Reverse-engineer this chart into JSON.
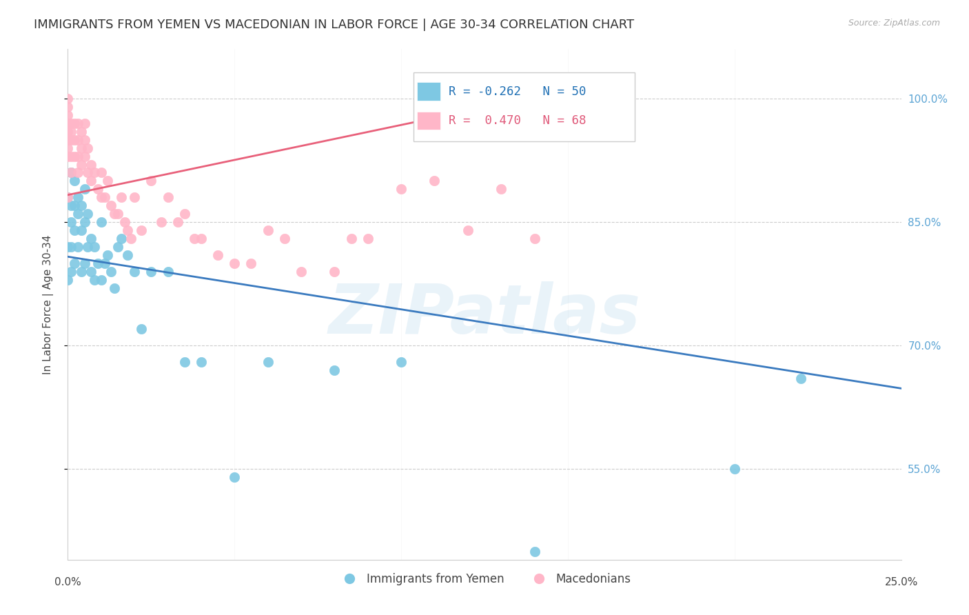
{
  "title": "IMMIGRANTS FROM YEMEN VS MACEDONIAN IN LABOR FORCE | AGE 30-34 CORRELATION CHART",
  "source": "Source: ZipAtlas.com",
  "ylabel": "In Labor Force | Age 30-34",
  "yticks": [
    0.55,
    0.7,
    0.85,
    1.0
  ],
  "ytick_labels": [
    "55.0%",
    "70.0%",
    "85.0%",
    "100.0%"
  ],
  "xlim": [
    0.0,
    0.25
  ],
  "ylim": [
    0.44,
    1.06
  ],
  "legend_blue_r": "-0.262",
  "legend_blue_n": "50",
  "legend_pink_r": "0.470",
  "legend_pink_n": "68",
  "legend_blue_label": "Immigrants from Yemen",
  "legend_pink_label": "Macedonians",
  "blue_color": "#7ec8e3",
  "pink_color": "#ffb6c8",
  "blue_line_color": "#3a7abf",
  "pink_line_color": "#e8607a",
  "background_color": "#ffffff",
  "watermark": "ZIPatlas",
  "title_fontsize": 13,
  "label_fontsize": 11,
  "tick_fontsize": 11,
  "blue_points_x": [
    0.0,
    0.0,
    0.0,
    0.001,
    0.001,
    0.001,
    0.001,
    0.001,
    0.002,
    0.002,
    0.002,
    0.002,
    0.003,
    0.003,
    0.003,
    0.004,
    0.004,
    0.004,
    0.005,
    0.005,
    0.005,
    0.006,
    0.006,
    0.007,
    0.007,
    0.008,
    0.008,
    0.009,
    0.01,
    0.01,
    0.011,
    0.012,
    0.013,
    0.014,
    0.015,
    0.016,
    0.018,
    0.02,
    0.022,
    0.025,
    0.03,
    0.035,
    0.04,
    0.05,
    0.06,
    0.08,
    0.1,
    0.14,
    0.2,
    0.22
  ],
  "blue_points_y": [
    0.88,
    0.82,
    0.78,
    0.91,
    0.87,
    0.85,
    0.82,
    0.79,
    0.9,
    0.87,
    0.84,
    0.8,
    0.88,
    0.86,
    0.82,
    0.87,
    0.84,
    0.79,
    0.89,
    0.85,
    0.8,
    0.86,
    0.82,
    0.83,
    0.79,
    0.82,
    0.78,
    0.8,
    0.85,
    0.78,
    0.8,
    0.81,
    0.79,
    0.77,
    0.82,
    0.83,
    0.81,
    0.79,
    0.72,
    0.79,
    0.79,
    0.68,
    0.68,
    0.54,
    0.68,
    0.67,
    0.68,
    0.45,
    0.55,
    0.66
  ],
  "pink_points_x": [
    0.0,
    0.0,
    0.0,
    0.0,
    0.0,
    0.0,
    0.0,
    0.0,
    0.0,
    0.0,
    0.001,
    0.001,
    0.001,
    0.001,
    0.001,
    0.002,
    0.002,
    0.002,
    0.003,
    0.003,
    0.003,
    0.003,
    0.004,
    0.004,
    0.004,
    0.005,
    0.005,
    0.005,
    0.006,
    0.006,
    0.007,
    0.007,
    0.008,
    0.009,
    0.01,
    0.01,
    0.011,
    0.012,
    0.013,
    0.014,
    0.015,
    0.016,
    0.017,
    0.018,
    0.019,
    0.02,
    0.022,
    0.025,
    0.028,
    0.03,
    0.033,
    0.035,
    0.038,
    0.04,
    0.045,
    0.05,
    0.055,
    0.06,
    0.065,
    0.07,
    0.08,
    0.085,
    0.09,
    0.1,
    0.11,
    0.12,
    0.13,
    0.14
  ],
  "pink_points_y": [
    1.0,
    0.99,
    0.98,
    0.97,
    0.97,
    0.96,
    0.95,
    0.94,
    0.93,
    0.88,
    0.97,
    0.96,
    0.95,
    0.93,
    0.91,
    0.97,
    0.95,
    0.93,
    0.97,
    0.95,
    0.93,
    0.91,
    0.96,
    0.94,
    0.92,
    0.97,
    0.95,
    0.93,
    0.94,
    0.91,
    0.92,
    0.9,
    0.91,
    0.89,
    0.91,
    0.88,
    0.88,
    0.9,
    0.87,
    0.86,
    0.86,
    0.88,
    0.85,
    0.84,
    0.83,
    0.88,
    0.84,
    0.9,
    0.85,
    0.88,
    0.85,
    0.86,
    0.83,
    0.83,
    0.81,
    0.8,
    0.8,
    0.84,
    0.83,
    0.79,
    0.79,
    0.83,
    0.83,
    0.89,
    0.9,
    0.84,
    0.89,
    0.83
  ],
  "blue_line_x": [
    0.0,
    0.25
  ],
  "blue_line_y": [
    0.808,
    0.648
  ],
  "pink_line_x": [
    0.0,
    0.14
  ],
  "pink_line_y": [
    0.883,
    1.002
  ]
}
